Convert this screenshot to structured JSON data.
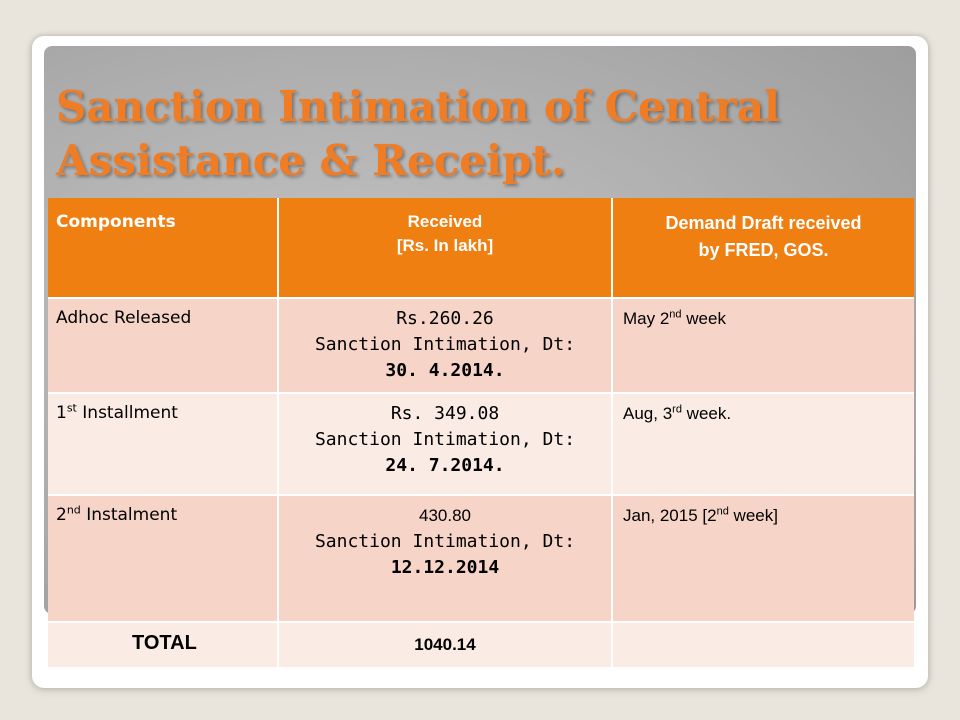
{
  "slide": {
    "title": "Sanction Intimation of Central Assistance & Receipt."
  },
  "table": {
    "headers": {
      "components": "Components",
      "received_line1": "Received",
      "received_line2": "[Rs. In lakh]",
      "dd_line1": "Demand Draft received",
      "dd_line2": "by FRED, GOS."
    },
    "rows": [
      {
        "component": "Adhoc Released",
        "component_sup": "",
        "component_suffix": "",
        "amount": "Rs.260.26",
        "intimation": "Sanction Intimation, Dt:",
        "date": "30. 4.2014.",
        "dd_prefix": "May 2",
        "dd_sup": "nd",
        "dd_suffix": " week"
      },
      {
        "component": "1",
        "component_sup": "st",
        "component_suffix": " Installment",
        "amount": "Rs. 349.08",
        "intimation": "Sanction Intimation, Dt:",
        "date": "24. 7.2014.",
        "dd_prefix": "Aug, 3",
        "dd_sup": "rd",
        "dd_suffix": " week."
      },
      {
        "component": "2",
        "component_sup": "nd",
        "component_suffix": " Instalment",
        "amount": "430.80",
        "intimation": "Sanction Intimation, Dt:",
        "date": "12.12.2014",
        "dd_prefix": "Jan, 2015 [2",
        "dd_sup": "nd",
        "dd_suffix": " week]"
      }
    ],
    "total": {
      "label": "TOTAL",
      "amount": "1040.14",
      "dd": ""
    }
  },
  "colors": {
    "title": "#f07c24",
    "header_bg": "#f07f12",
    "row_dark": "#f6d4c7",
    "row_light": "#faebe5",
    "panel": "#b2b2b2"
  }
}
